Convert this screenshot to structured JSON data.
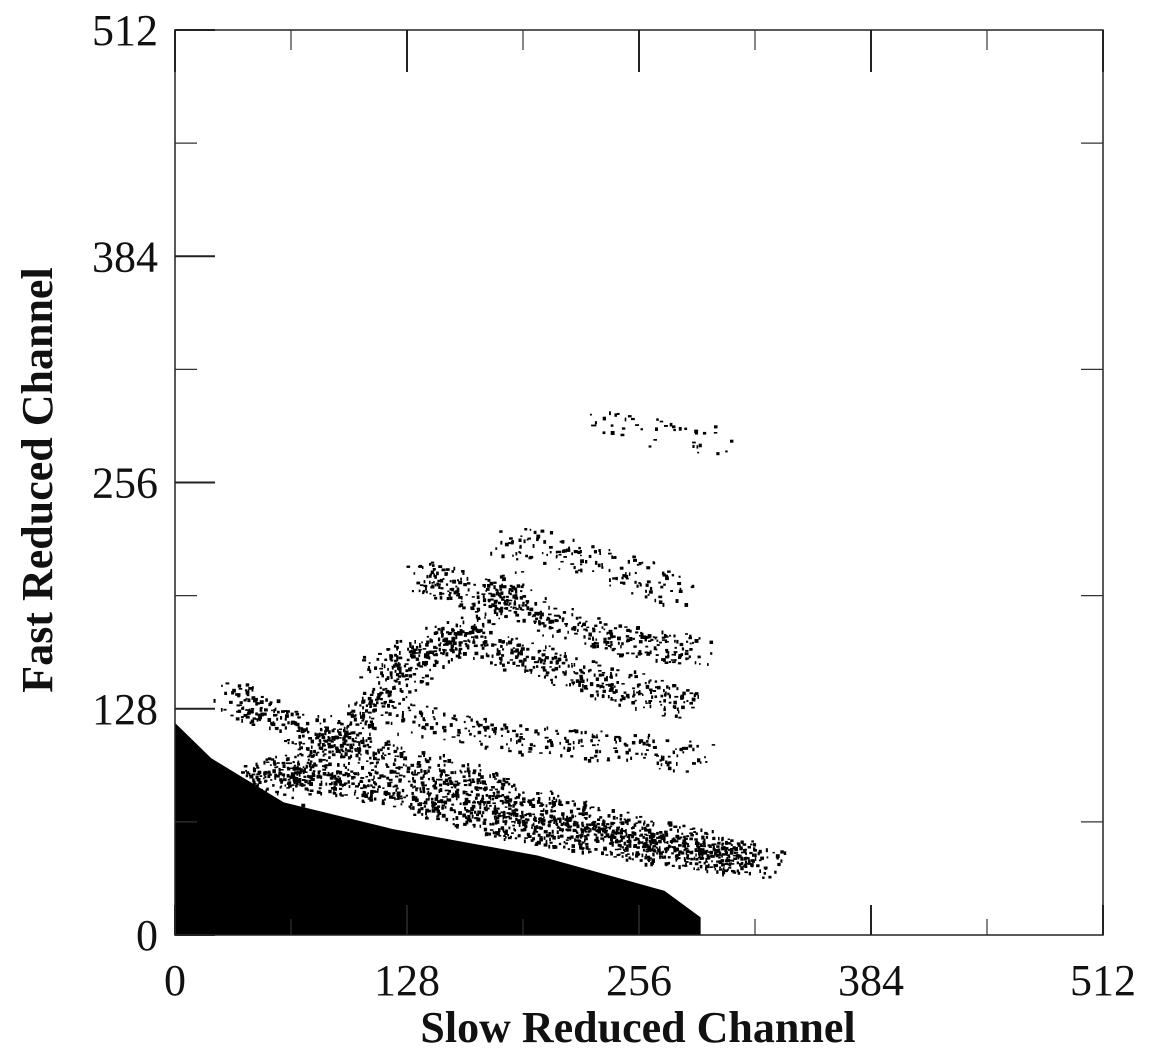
{
  "chart_data": {
    "type": "heatmap",
    "title": "",
    "xlabel": "Slow Reduced Channel",
    "ylabel": "Fast Reduced Channel",
    "xlim": [
      0,
      512
    ],
    "ylim": [
      0,
      512
    ],
    "xticks": [
      0,
      128,
      256,
      384,
      512
    ],
    "yticks": [
      0,
      128,
      256,
      384,
      512
    ],
    "xtick_labels": [
      "0",
      "128",
      "256",
      "384",
      "512"
    ],
    "ytick_labels": [
      "0",
      "128",
      "256",
      "384",
      "512"
    ],
    "grid": false,
    "color": "#000000",
    "bands": [
      {
        "points": [
          [
            10,
            70
          ],
          [
            60,
            95
          ],
          [
            120,
            82
          ],
          [
            190,
            62
          ],
          [
            260,
            50
          ],
          [
            310,
            42
          ]
        ],
        "density": 0.9
      },
      {
        "points": [
          [
            30,
            135
          ],
          [
            80,
            112
          ],
          [
            140,
            95
          ],
          [
            210,
            70
          ],
          [
            300,
            48
          ],
          [
            330,
            40
          ]
        ],
        "density": 0.75
      },
      {
        "points": [
          [
            100,
            128
          ],
          [
            150,
            120
          ],
          [
            200,
            110
          ],
          [
            260,
            105
          ],
          [
            290,
            100
          ]
        ],
        "density": 0.35
      },
      {
        "points": [
          [
            110,
            150
          ],
          [
            150,
            170
          ],
          [
            200,
            155
          ],
          [
            250,
            140
          ],
          [
            280,
            130
          ]
        ],
        "density": 0.65
      },
      {
        "points": [
          [
            130,
            205
          ],
          [
            175,
            190
          ],
          [
            220,
            175
          ],
          [
            260,
            165
          ],
          [
            290,
            160
          ]
        ],
        "density": 0.6
      },
      {
        "points": [
          [
            180,
            225
          ],
          [
            220,
            215
          ],
          [
            250,
            205
          ],
          [
            280,
            195
          ]
        ],
        "density": 0.35
      },
      {
        "points": [
          [
            230,
            290
          ],
          [
            270,
            285
          ],
          [
            300,
            280
          ]
        ],
        "density": 0.15
      },
      {
        "points": [
          [
            60,
            80
          ],
          [
            90,
            115
          ],
          [
            130,
            150
          ],
          [
            160,
            175
          ],
          [
            190,
            200
          ]
        ],
        "density": 0.5
      }
    ],
    "filled_region": {
      "points": [
        [
          0,
          0
        ],
        [
          0,
          120
        ],
        [
          20,
          100
        ],
        [
          60,
          75
        ],
        [
          120,
          60
        ],
        [
          200,
          45
        ],
        [
          270,
          25
        ],
        [
          290,
          10
        ],
        [
          290,
          0
        ]
      ]
    }
  }
}
